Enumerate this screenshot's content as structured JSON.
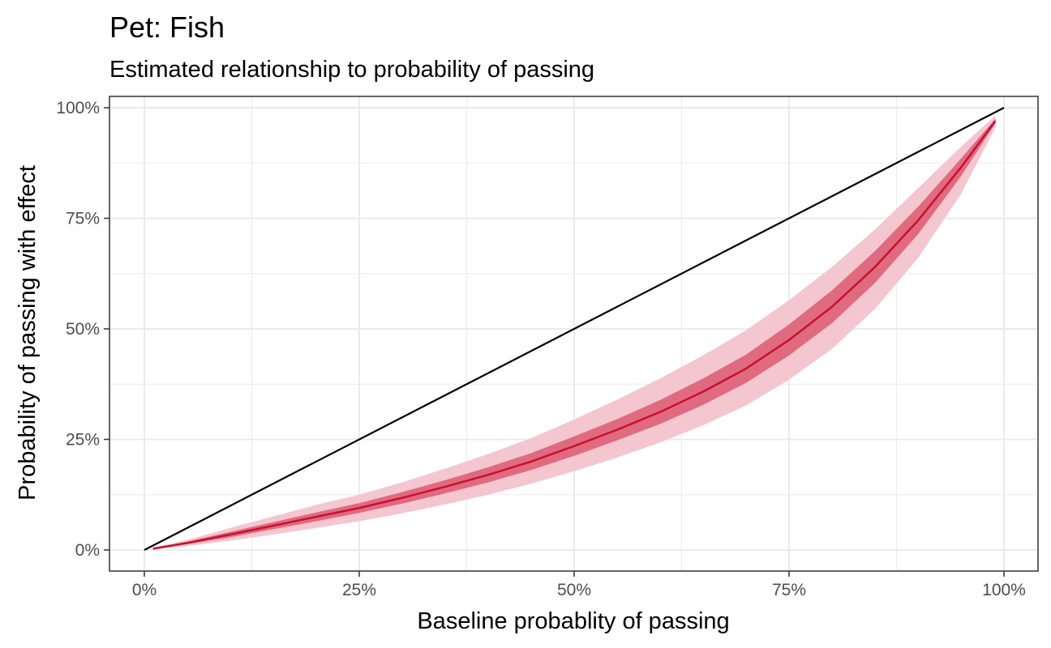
{
  "chart_data": {
    "type": "line",
    "title": "Pet: Fish",
    "subtitle": "Estimated relationship to probability of passing",
    "xlabel": "Baseline probablity of passing",
    "ylabel": "Probability of passing with effect",
    "xlim": [
      0,
      1
    ],
    "ylim": [
      0,
      1
    ],
    "x_ticks": [
      0,
      0.25,
      0.5,
      0.75,
      1
    ],
    "x_tick_labels": [
      "0%",
      "25%",
      "50%",
      "75%",
      "100%"
    ],
    "y_ticks": [
      0,
      0.25,
      0.5,
      0.75,
      1
    ],
    "y_tick_labels": [
      "0%",
      "25%",
      "50%",
      "75%",
      "100%"
    ],
    "grid": true,
    "legend": "none",
    "colors": {
      "reference_line": "#000000",
      "estimate_line": "#c8102e",
      "inner_band": "#e06a80",
      "outer_band": "#f4c6cf",
      "grid": "#ebebeb",
      "panel_border": "#333333"
    },
    "series": [
      {
        "kind": "reference",
        "x": [
          0,
          1
        ],
        "y": [
          0,
          1
        ]
      },
      {
        "kind": "estimate",
        "x": [
          0.01,
          0.05,
          0.1,
          0.15,
          0.2,
          0.25,
          0.3,
          0.35,
          0.4,
          0.45,
          0.5,
          0.55,
          0.6,
          0.65,
          0.7,
          0.75,
          0.8,
          0.85,
          0.9,
          0.95,
          0.99
        ],
        "y": [
          0.003,
          0.016,
          0.035,
          0.055,
          0.075,
          0.095,
          0.118,
          0.143,
          0.17,
          0.2,
          0.235,
          0.272,
          0.312,
          0.358,
          0.41,
          0.475,
          0.55,
          0.64,
          0.745,
          0.865,
          0.97
        ],
        "inner_low": [
          0.002,
          0.013,
          0.029,
          0.047,
          0.065,
          0.084,
          0.105,
          0.128,
          0.153,
          0.181,
          0.213,
          0.248,
          0.285,
          0.328,
          0.378,
          0.44,
          0.513,
          0.604,
          0.714,
          0.845,
          0.965
        ],
        "inner_high": [
          0.004,
          0.019,
          0.041,
          0.063,
          0.085,
          0.106,
          0.131,
          0.158,
          0.187,
          0.219,
          0.257,
          0.296,
          0.339,
          0.388,
          0.442,
          0.51,
          0.587,
          0.676,
          0.776,
          0.885,
          0.975
        ],
        "outer_low": [
          0.001,
          0.009,
          0.021,
          0.035,
          0.05,
          0.065,
          0.083,
          0.103,
          0.125,
          0.15,
          0.178,
          0.209,
          0.243,
          0.282,
          0.327,
          0.385,
          0.455,
          0.545,
          0.66,
          0.805,
          0.955
        ],
        "outer_high": [
          0.005,
          0.023,
          0.05,
          0.076,
          0.102,
          0.125,
          0.153,
          0.184,
          0.217,
          0.253,
          0.295,
          0.34,
          0.388,
          0.44,
          0.497,
          0.565,
          0.64,
          0.725,
          0.818,
          0.912,
          0.982
        ]
      }
    ]
  }
}
